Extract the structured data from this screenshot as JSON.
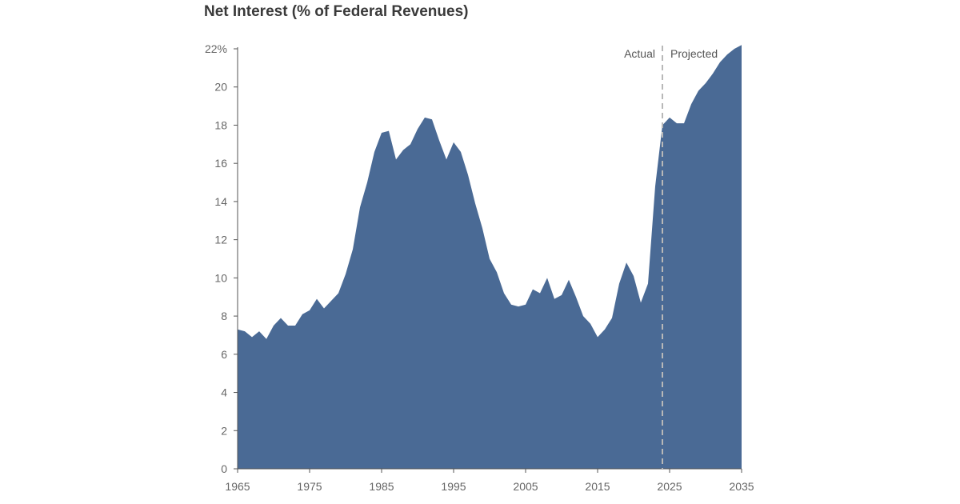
{
  "chart_data": {
    "type": "area",
    "title": "Net Interest (% of Federal Revenues)",
    "xlabel": "",
    "ylabel": "",
    "xlim": [
      1965,
      2035
    ],
    "ylim": [
      0,
      22
    ],
    "x_ticks": [
      "1965",
      "1975",
      "1985",
      "1995",
      "2005",
      "2015",
      "2025",
      "2035"
    ],
    "y_ticks": [
      "0",
      "2",
      "4",
      "6",
      "8",
      "10",
      "12",
      "14",
      "16",
      "18",
      "20",
      "22%"
    ],
    "grid": false,
    "series": [
      {
        "color": "#4a6a95",
        "x": [
          1965,
          1966,
          1967,
          1968,
          1969,
          1970,
          1971,
          1972,
          1973,
          1974,
          1975,
          1976,
          1977,
          1978,
          1979,
          1980,
          1981,
          1982,
          1983,
          1984,
          1985,
          1986,
          1987,
          1988,
          1989,
          1990,
          1991,
          1992,
          1993,
          1994,
          1995,
          1996,
          1997,
          1998,
          1999,
          2000,
          2001,
          2002,
          2003,
          2004,
          2005,
          2006,
          2007,
          2008,
          2009,
          2010,
          2011,
          2012,
          2013,
          2014,
          2015,
          2016,
          2017,
          2018,
          2019,
          2020,
          2021,
          2022,
          2023,
          2024,
          2025,
          2026,
          2027,
          2028,
          2029,
          2030,
          2031,
          2032,
          2033,
          2034,
          2035
        ],
        "values": [
          7.3,
          7.2,
          6.9,
          7.2,
          6.8,
          7.5,
          7.9,
          7.5,
          7.5,
          8.1,
          8.3,
          8.9,
          8.4,
          8.8,
          9.2,
          10.2,
          11.5,
          13.7,
          15.0,
          16.6,
          17.6,
          17.7,
          16.2,
          16.7,
          17.0,
          17.8,
          18.4,
          18.3,
          17.2,
          16.2,
          17.1,
          16.6,
          15.4,
          13.9,
          12.6,
          11.0,
          10.3,
          9.2,
          8.6,
          8.5,
          8.6,
          9.4,
          9.2,
          10.0,
          8.9,
          9.1,
          9.9,
          9.0,
          8.0,
          7.6,
          6.9,
          7.3,
          7.9,
          9.7,
          10.8,
          10.1,
          8.7,
          9.7,
          14.8,
          18.0,
          18.4,
          18.1,
          18.1,
          19.1,
          19.8,
          20.2,
          20.7,
          21.3,
          21.7,
          22.0,
          22.2
        ]
      }
    ],
    "divider_year": 2024,
    "annotations": [
      "Actual",
      "Projected"
    ]
  },
  "colors": {
    "area": "#4a6a95",
    "divider": "#b8b8b8",
    "axis": "#555555"
  }
}
